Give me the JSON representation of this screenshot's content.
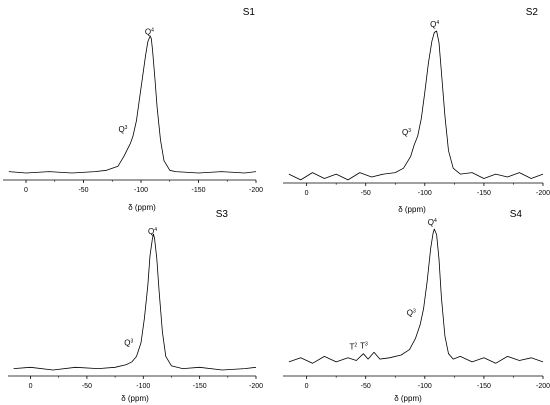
{
  "chart_data": [
    {
      "type": "line",
      "panel": "S1",
      "xlabel": "δ (ppm)",
      "xlim": [
        20,
        -200
      ],
      "xticks": [
        0,
        -50,
        -100,
        -150,
        -200
      ],
      "tick_labels": [
        "0",
        "-50",
        "-100",
        "-150",
        "-200"
      ],
      "y_axis_visible": false,
      "annotations": [
        {
          "label": "Q",
          "sup": "3",
          "x": -93
        },
        {
          "label": "Q",
          "sup": "4",
          "x": -109
        }
      ],
      "series": [
        {
          "x": [
            15,
            0,
            -20,
            -40,
            -60,
            -70,
            -80,
            -85,
            -88,
            -91,
            -93,
            -96,
            -100,
            -104,
            -106,
            -108,
            -109,
            -110,
            -112,
            -114,
            -117,
            -120,
            -125,
            -130,
            -150,
            -170,
            -190,
            -200
          ],
          "y": [
            0.01,
            0.0,
            0.01,
            0.0,
            0.01,
            0.02,
            0.05,
            0.12,
            0.17,
            0.22,
            0.27,
            0.38,
            0.62,
            0.86,
            0.96,
            1.0,
            0.98,
            0.9,
            0.7,
            0.48,
            0.24,
            0.09,
            0.02,
            0.01,
            0.0,
            0.01,
            0.0,
            0.01
          ]
        }
      ]
    },
    {
      "type": "line",
      "panel": "S2",
      "xlabel": "δ (ppm)",
      "xlim": [
        20,
        -200
      ],
      "xticks": [
        0,
        -50,
        -100,
        -150,
        -200
      ],
      "tick_labels": [
        "0",
        "-50",
        "-100",
        "-150",
        "-200"
      ],
      "y_axis_visible": false,
      "annotations": [
        {
          "label": "Q",
          "sup": "3",
          "x": -93
        },
        {
          "label": "Q",
          "sup": "4",
          "x": -110
        }
      ],
      "series": [
        {
          "x": [
            15,
            5,
            -5,
            -15,
            -25,
            -35,
            -45,
            -55,
            -65,
            -75,
            -82,
            -88,
            -91,
            -94,
            -97,
            -100,
            -103,
            -106,
            -108,
            -110,
            -112,
            -114,
            -117,
            -120,
            -124,
            -130,
            -140,
            -150,
            -160,
            -170,
            -180,
            -190,
            -200
          ],
          "y": [
            0.02,
            -0.02,
            0.03,
            -0.01,
            0.02,
            -0.02,
            0.03,
            0.0,
            0.02,
            0.03,
            0.06,
            0.14,
            0.22,
            0.28,
            0.4,
            0.58,
            0.78,
            0.93,
            0.99,
            1.0,
            0.92,
            0.72,
            0.42,
            0.18,
            0.06,
            0.02,
            0.03,
            -0.01,
            0.02,
            0.0,
            0.03,
            -0.01,
            0.02
          ]
        }
      ]
    },
    {
      "type": "line",
      "panel": "S3",
      "xlabel": "δ (ppm)",
      "xlim": [
        20,
        -200
      ],
      "xticks": [
        0,
        -50,
        -100,
        -150,
        -200
      ],
      "tick_labels": [
        "0",
        "-50",
        "-100",
        "-150",
        "-200"
      ],
      "y_axis_visible": false,
      "annotations": [
        {
          "label": "Q",
          "sup": "3",
          "x": -96
        },
        {
          "label": "Q",
          "sup": "4",
          "x": -110
        }
      ],
      "series": [
        {
          "x": [
            15,
            0,
            -20,
            -40,
            -60,
            -75,
            -85,
            -90,
            -94,
            -98,
            -101,
            -104,
            -106,
            -108,
            -109,
            -110,
            -112,
            -114,
            -117,
            -120,
            -125,
            -135,
            -150,
            -170,
            -190,
            -200
          ],
          "y": [
            0.01,
            0.02,
            0.0,
            0.02,
            0.01,
            0.02,
            0.04,
            0.06,
            0.1,
            0.2,
            0.38,
            0.62,
            0.84,
            0.96,
            1.0,
            0.97,
            0.82,
            0.58,
            0.28,
            0.1,
            0.03,
            0.01,
            0.02,
            0.0,
            0.01,
            0.02
          ]
        }
      ]
    },
    {
      "type": "line",
      "panel": "S4",
      "xlabel": "δ (ppm)",
      "xlim": [
        20,
        -200
      ],
      "xticks": [
        0,
        -50,
        -100,
        -150,
        -200
      ],
      "tick_labels": [
        "0",
        "-50",
        "-100",
        "-150",
        "-200"
      ],
      "y_axis_visible": false,
      "annotations": [
        {
          "label": "T",
          "sup": "2",
          "x": -48
        },
        {
          "label": "T",
          "sup": "3",
          "x": -57
        },
        {
          "label": "Q",
          "sup": "3",
          "x": -97
        },
        {
          "label": "Q",
          "sup": "4",
          "x": -108
        }
      ],
      "series": [
        {
          "x": [
            15,
            5,
            -5,
            -15,
            -25,
            -35,
            -42,
            -48,
            -52,
            -57,
            -62,
            -70,
            -80,
            -87,
            -92,
            -96,
            -99,
            -102,
            -105,
            -107,
            -108,
            -110,
            -112,
            -114,
            -117,
            -120,
            -124,
            -130,
            -140,
            -150,
            -160,
            -170,
            -180,
            -190,
            -200
          ],
          "y": [
            0.03,
            0.06,
            0.02,
            0.07,
            0.03,
            0.06,
            0.04,
            0.09,
            0.05,
            0.1,
            0.05,
            0.06,
            0.08,
            0.12,
            0.2,
            0.3,
            0.42,
            0.62,
            0.86,
            0.97,
            1.0,
            0.96,
            0.78,
            0.5,
            0.22,
            0.09,
            0.05,
            0.07,
            0.03,
            0.06,
            0.02,
            0.07,
            0.04,
            0.06,
            0.03
          ]
        }
      ]
    }
  ]
}
